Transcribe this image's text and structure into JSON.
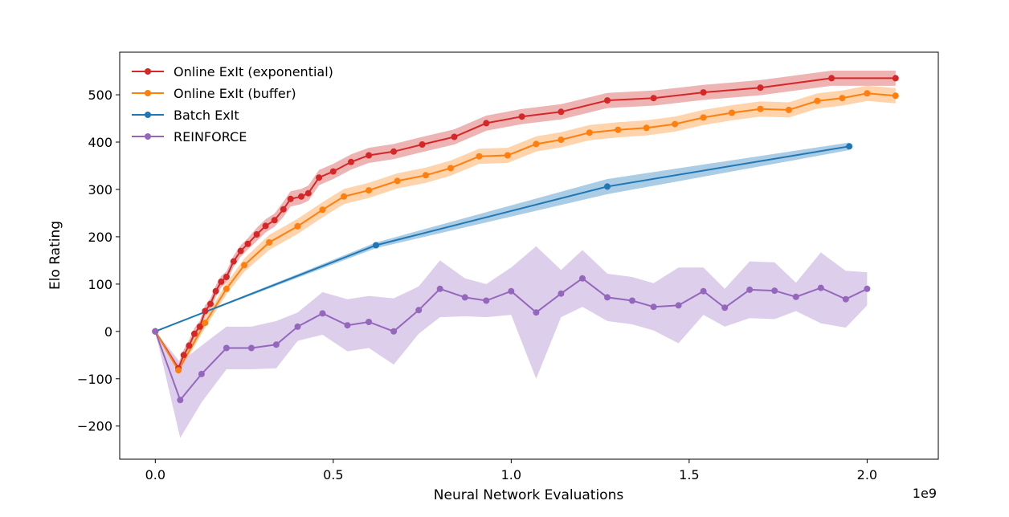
{
  "chart_data": {
    "type": "line",
    "xlabel": "Neural Network Evaluations",
    "ylabel": "Elo Rating",
    "x_offset_label": "1e9",
    "xlim": [
      -0.1,
      2.2
    ],
    "ylim": [
      -270,
      590
    ],
    "x_ticks": [
      0.0,
      0.5,
      1.0,
      1.5,
      2.0
    ],
    "x_tick_labels": [
      "0.0",
      "0.5",
      "1.0",
      "1.5",
      "2.0"
    ],
    "y_ticks": [
      -200,
      -100,
      0,
      100,
      200,
      300,
      400,
      500
    ],
    "y_tick_labels": [
      "−200",
      "−100",
      "0",
      "100",
      "200",
      "300",
      "400",
      "500"
    ],
    "grid": false,
    "legend_position": "top-left",
    "series": [
      {
        "name": "Online ExIt (exponential)",
        "color": "#d62728",
        "band_color": "#e89a9a",
        "x": [
          0.0,
          0.065,
          0.08,
          0.095,
          0.11,
          0.125,
          0.14,
          0.155,
          0.17,
          0.185,
          0.2,
          0.22,
          0.24,
          0.26,
          0.285,
          0.31,
          0.335,
          0.36,
          0.38,
          0.41,
          0.43,
          0.46,
          0.5,
          0.55,
          0.6,
          0.67,
          0.75,
          0.84,
          0.93,
          1.03,
          1.14,
          1.27,
          1.4,
          1.54,
          1.7,
          1.9,
          2.08
        ],
        "y": [
          0,
          -78,
          -50,
          -30,
          -5,
          10,
          43,
          58,
          85,
          105,
          115,
          148,
          170,
          185,
          205,
          223,
          235,
          258,
          280,
          285,
          292,
          325,
          338,
          358,
          372,
          380,
          395,
          411,
          440,
          454,
          464,
          488,
          493,
          505,
          515,
          535,
          535
        ],
        "band": [
          0,
          10,
          12,
          12,
          12,
          12,
          12,
          12,
          12,
          12,
          12,
          12,
          12,
          12,
          14,
          14,
          14,
          16,
          16,
          16,
          16,
          16,
          16,
          16,
          16,
          16,
          16,
          16,
          16,
          16,
          16,
          16,
          16,
          16,
          16,
          16,
          16
        ]
      },
      {
        "name": "Online ExIt (buffer)",
        "color": "#ff7f0e",
        "band_color": "#ffc48f",
        "x": [
          0.0,
          0.065,
          0.14,
          0.2,
          0.25,
          0.32,
          0.4,
          0.47,
          0.53,
          0.6,
          0.68,
          0.76,
          0.83,
          0.91,
          0.99,
          1.07,
          1.14,
          1.22,
          1.3,
          1.38,
          1.46,
          1.54,
          1.62,
          1.7,
          1.78,
          1.86,
          1.93,
          2.0,
          2.08
        ],
        "y": [
          0,
          -82,
          18,
          90,
          140,
          188,
          222,
          257,
          285,
          298,
          318,
          330,
          345,
          370,
          372,
          396,
          405,
          420,
          426,
          430,
          438,
          452,
          462,
          470,
          468,
          487,
          493,
          503,
          498
        ],
        "band": [
          0,
          8,
          10,
          12,
          14,
          16,
          16,
          16,
          16,
          16,
          16,
          16,
          16,
          16,
          16,
          16,
          16,
          16,
          16,
          16,
          16,
          16,
          16,
          16,
          16,
          16,
          16,
          16,
          16
        ]
      },
      {
        "name": "Batch  ExIt",
        "color": "#1f77b4",
        "band_color": "#8ebbdc",
        "x": [
          0.0,
          0.62,
          1.27,
          1.95
        ],
        "y": [
          0,
          182,
          306,
          391
        ],
        "band": [
          0,
          6,
          16,
          8
        ]
      },
      {
        "name": "REINFORCE",
        "color": "#9467bd",
        "band_color": "#d2bfe4",
        "x": [
          0.0,
          0.07,
          0.13,
          0.2,
          0.27,
          0.34,
          0.4,
          0.47,
          0.54,
          0.6,
          0.67,
          0.74,
          0.8,
          0.87,
          0.93,
          1.0,
          1.07,
          1.14,
          1.2,
          1.27,
          1.34,
          1.4,
          1.47,
          1.54,
          1.6,
          1.67,
          1.74,
          1.8,
          1.87,
          1.94,
          2.0
        ],
        "y": [
          0,
          -145,
          -90,
          -35,
          -35,
          -28,
          10,
          38,
          13,
          20,
          0,
          45,
          90,
          72,
          65,
          85,
          40,
          80,
          112,
          72,
          65,
          52,
          55,
          85,
          50,
          88,
          86,
          73,
          92,
          68,
          90
        ],
        "band": [
          0,
          80,
          60,
          45,
          45,
          50,
          30,
          45,
          55,
          55,
          70,
          50,
          60,
          40,
          35,
          50,
          140,
          50,
          60,
          50,
          50,
          50,
          80,
          50,
          40,
          60,
          60,
          30,
          75,
          60,
          35
        ]
      }
    ]
  }
}
